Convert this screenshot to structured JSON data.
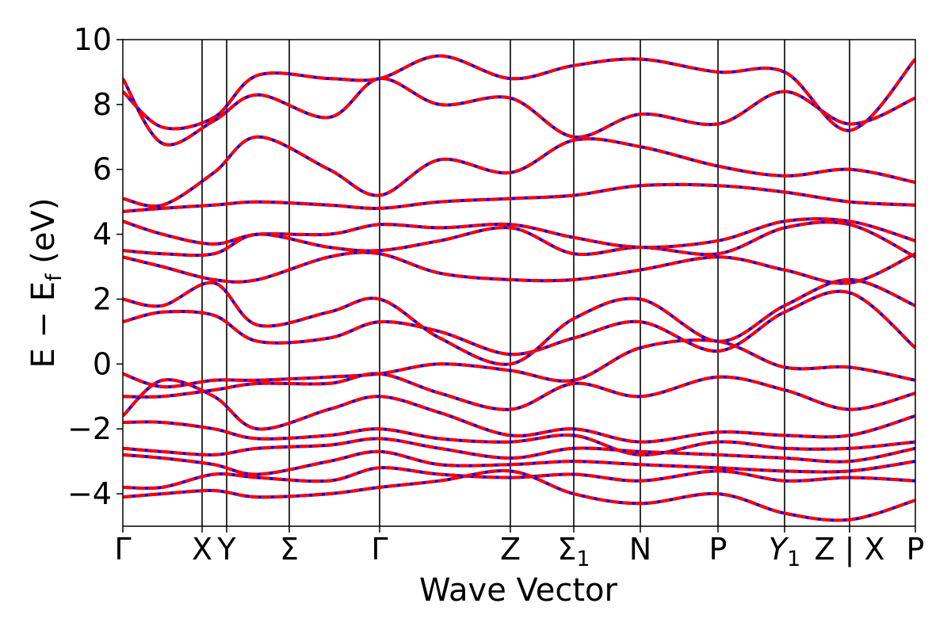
{
  "chart_data": {
    "type": "line",
    "xlabel": "Wave Vector",
    "ylabel_parts": {
      "main": "E − E",
      "sub": "f",
      "unit": " (eV)"
    },
    "ylim": [
      -5,
      10
    ],
    "xlim": [
      0,
      10
    ],
    "yticks": [
      -4,
      -2,
      0,
      2,
      4,
      6,
      8,
      10
    ],
    "ytick_labels": [
      "−4",
      "−2",
      "0",
      "2",
      "4",
      "6",
      "8",
      "10"
    ],
    "grid": false,
    "legend": "none",
    "colors": {
      "series_a": "#ff0000",
      "series_b": "#0000ff",
      "kpath_lines": "#000000"
    },
    "kpoints": [
      {
        "label": "Γ",
        "x": 0.0
      },
      {
        "label": "X",
        "x": 1.0
      },
      {
        "label": "Y",
        "x": 1.31
      },
      {
        "label": "Σ",
        "x": 2.1
      },
      {
        "label": "Γ",
        "x": 3.24
      },
      {
        "label": "Z",
        "x": 4.89
      },
      {
        "label": "Σ",
        "sub": "1",
        "x": 5.69
      },
      {
        "label": "N",
        "x": 6.53
      },
      {
        "label": "P",
        "x": 7.51
      },
      {
        "label": "Y",
        "sub": "1",
        "italic": true,
        "x": 8.35
      },
      {
        "label": "Z | X",
        "x": 9.17
      },
      {
        "label": "P",
        "x": 10.0
      }
    ],
    "kpath_separators": [
      1.0,
      1.31,
      2.1,
      3.24,
      4.89,
      5.69,
      6.53,
      7.51,
      8.35,
      9.17
    ],
    "series": [
      {
        "y": [
          1.3,
          1.6,
          1.5,
          0.7,
          0.8,
          1.3,
          1.0,
          0.3,
          0.8,
          1.3,
          0.4,
          1.6,
          2.2,
          0.5
        ]
      },
      {
        "y": [
          2.0,
          1.8,
          2.5,
          1.2,
          1.6,
          2.0,
          0.8,
          0.0,
          1.4,
          2.0,
          0.7,
          1.8,
          2.6,
          1.8
        ]
      },
      {
        "y": [
          3.3,
          3.0,
          2.6,
          2.6,
          3.3,
          3.4,
          2.8,
          2.6,
          2.6,
          2.9,
          3.3,
          2.9,
          2.5,
          3.4
        ]
      },
      {
        "y": [
          3.5,
          3.4,
          3.4,
          4.0,
          3.6,
          3.5,
          3.8,
          4.2,
          3.4,
          3.6,
          3.4,
          4.2,
          4.3,
          3.3
        ]
      },
      {
        "y": [
          4.4,
          4.0,
          3.7,
          4.0,
          4.0,
          4.3,
          4.2,
          4.3,
          3.9,
          3.6,
          3.8,
          4.4,
          4.4,
          3.8
        ]
      },
      {
        "y": [
          4.7,
          4.8,
          4.9,
          5.0,
          4.9,
          4.8,
          5.0,
          5.1,
          5.2,
          5.5,
          5.5,
          5.3,
          5.0,
          4.9
        ]
      },
      {
        "y": [
          5.1,
          4.9,
          5.9,
          7.0,
          6.0,
          5.2,
          6.3,
          5.9,
          6.9,
          6.7,
          6.1,
          5.8,
          6.0,
          5.6
        ]
      },
      {
        "y": [
          8.8,
          6.8,
          7.5,
          8.3,
          7.6,
          8.8,
          8.0,
          8.2,
          7.0,
          7.7,
          7.4,
          8.4,
          7.4,
          8.2
        ]
      },
      {
        "y": [
          8.4,
          7.3,
          7.6,
          8.9,
          8.8,
          8.8,
          9.5,
          8.8,
          9.2,
          9.4,
          9.0,
          9.0,
          7.2,
          9.4
        ]
      },
      {
        "y": [
          -0.3,
          -0.7,
          -0.5,
          -0.5,
          -0.4,
          -0.3,
          0.0,
          -0.2,
          -0.5,
          0.5,
          0.7,
          -0.1,
          -0.1,
          -0.5
        ]
      },
      {
        "y": [
          -1.0,
          -1.0,
          -0.8,
          -0.6,
          -0.6,
          -0.3,
          -0.9,
          -1.4,
          -0.6,
          -1.0,
          -0.4,
          -0.8,
          -1.4,
          -0.9
        ]
      },
      {
        "y": [
          -1.6,
          -0.5,
          -1.0,
          -2.0,
          -1.4,
          -1.0,
          -1.5,
          -2.2,
          -2.0,
          -2.4,
          -2.1,
          -2.2,
          -2.2,
          -1.6
        ]
      },
      {
        "y": [
          -1.8,
          -1.8,
          -2.0,
          -2.3,
          -2.2,
          -2.0,
          -2.3,
          -2.4,
          -2.2,
          -2.8,
          -2.4,
          -2.6,
          -2.6,
          -2.4
        ]
      },
      {
        "y": [
          -2.6,
          -2.7,
          -2.8,
          -2.6,
          -2.5,
          -2.3,
          -2.6,
          -2.9,
          -2.6,
          -2.7,
          -2.8,
          -2.9,
          -3.0,
          -2.6
        ]
      },
      {
        "y": [
          -2.8,
          -2.9,
          -3.1,
          -3.4,
          -3.0,
          -2.7,
          -3.1,
          -3.1,
          -3.0,
          -3.1,
          -3.2,
          -3.3,
          -3.3,
          -3.0
        ]
      },
      {
        "y": [
          -3.8,
          -3.8,
          -3.4,
          -3.5,
          -3.6,
          -3.2,
          -3.4,
          -3.5,
          -3.4,
          -3.6,
          -3.3,
          -3.6,
          -3.5,
          -3.6
        ]
      },
      {
        "y": [
          -4.1,
          -4.0,
          -3.9,
          -4.1,
          -4.0,
          -3.8,
          -3.6,
          -3.3,
          -4.0,
          -4.3,
          -4.0,
          -4.6,
          -4.8,
          -4.2
        ]
      }
    ]
  }
}
